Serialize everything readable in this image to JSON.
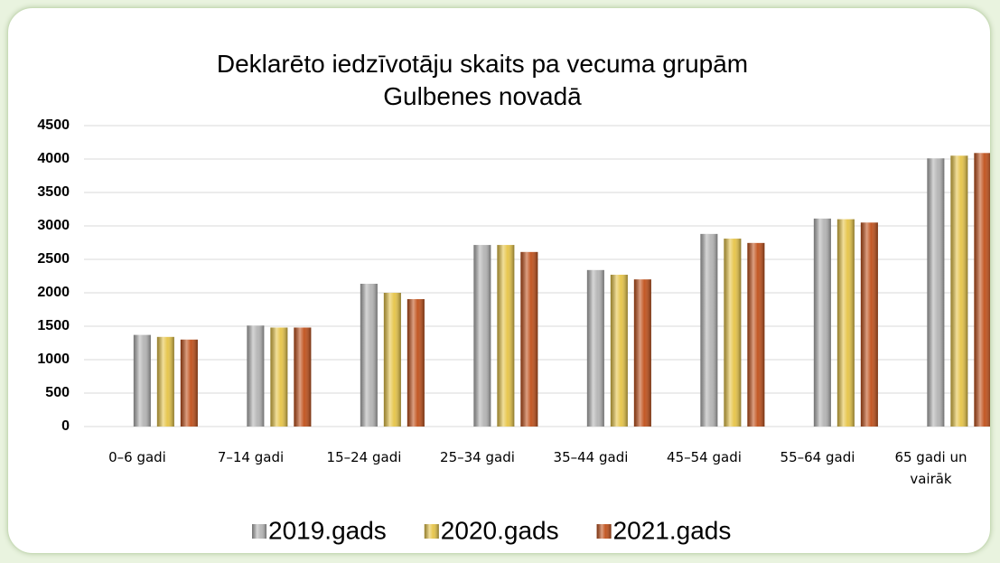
{
  "chart_data": {
    "type": "bar",
    "title": "Deklarēto iedzīvotāju skaits pa vecuma grupām Gulbenes novadā",
    "categories": [
      "0–6 gadi",
      "7–14 gadi",
      "15–24 gadi",
      "25–34 gadi",
      "35–44 gadi",
      "45–54 gadi",
      "55–64 gadi",
      "65 gadi un vairāk"
    ],
    "series": [
      {
        "name": "2019.gads",
        "color": "#b4b4b4",
        "values": [
          1370,
          1510,
          2135,
          2715,
          2340,
          2880,
          3110,
          4010
        ]
      },
      {
        "name": "2020.gads",
        "color": "#e6c447",
        "values": [
          1340,
          1480,
          2000,
          2715,
          2270,
          2810,
          3100,
          4050
        ]
      },
      {
        "name": "2021.gads",
        "color": "#c0501a",
        "values": [
          1300,
          1480,
          1905,
          2610,
          2200,
          2745,
          3050,
          4090
        ]
      }
    ],
    "ylim": [
      0,
      4500
    ],
    "yticks": [
      0,
      500,
      1000,
      1500,
      2000,
      2500,
      3000,
      3500,
      4000,
      4500
    ],
    "grid": true,
    "legend": "bottom"
  }
}
